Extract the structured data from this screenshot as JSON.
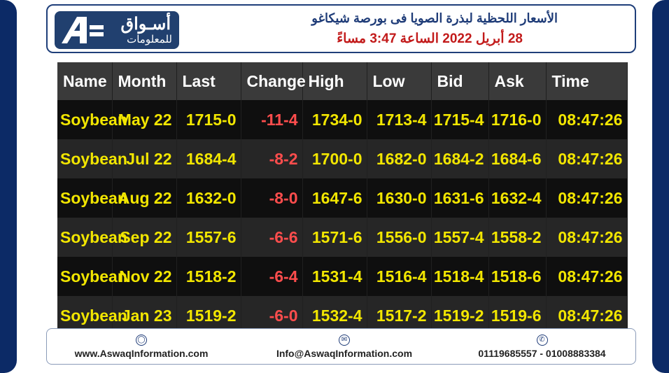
{
  "logo": {
    "brand_ar": "أسـواق",
    "sub_ar": "للمعلومات"
  },
  "title": {
    "line1": "الأسعار اللحظية لبذرة الصويا فى بورصة شيكاغو",
    "line2": "28 أبريل 2022 الساعة 3:47 مساءً"
  },
  "table": {
    "headers": [
      "Name",
      "Month",
      "Last",
      "Change",
      "High",
      "Low",
      "Bid",
      "Ask",
      "Time"
    ],
    "rows": [
      [
        "Soybean",
        "May 22",
        "1715-0",
        "-11-4",
        "1734-0",
        "1713-4",
        "1715-4",
        "1716-0",
        "08:47:26"
      ],
      [
        "Soybean",
        "Jul 22",
        "1684-4",
        "-8-2",
        "1700-0",
        "1682-0",
        "1684-2",
        "1684-6",
        "08:47:26"
      ],
      [
        "Soybean",
        "Aug 22",
        "1632-0",
        "-8-0",
        "1647-6",
        "1630-0",
        "1631-6",
        "1632-4",
        "08:47:26"
      ],
      [
        "Soybean",
        "Sep 22",
        "1557-6",
        "-6-6",
        "1571-6",
        "1556-0",
        "1557-4",
        "1558-2",
        "08:47:26"
      ],
      [
        "Soybean",
        "Nov 22",
        "1518-2",
        "-6-4",
        "1531-4",
        "1516-4",
        "1518-4",
        "1518-6",
        "08:47:26"
      ],
      [
        "Soybean",
        "Jan 23",
        "1519-2",
        "-6-0",
        "1532-4",
        "1517-2",
        "1519-2",
        "1519-6",
        "08:47:26"
      ]
    ]
  },
  "footer": {
    "website": "www.AswaqInformation.com",
    "email": "Info@AswaqInformation.com",
    "phone": "01119685557 - 01008883384",
    "icons": [
      "globe-icon",
      "mail-icon",
      "phone-icon"
    ]
  },
  "colors": {
    "frame": "#0c2a66",
    "title_blue": "#1f3c78",
    "title_red": "#c21a1a",
    "cell_yellow": "#f2e600",
    "change_red": "#ff4d4d"
  }
}
